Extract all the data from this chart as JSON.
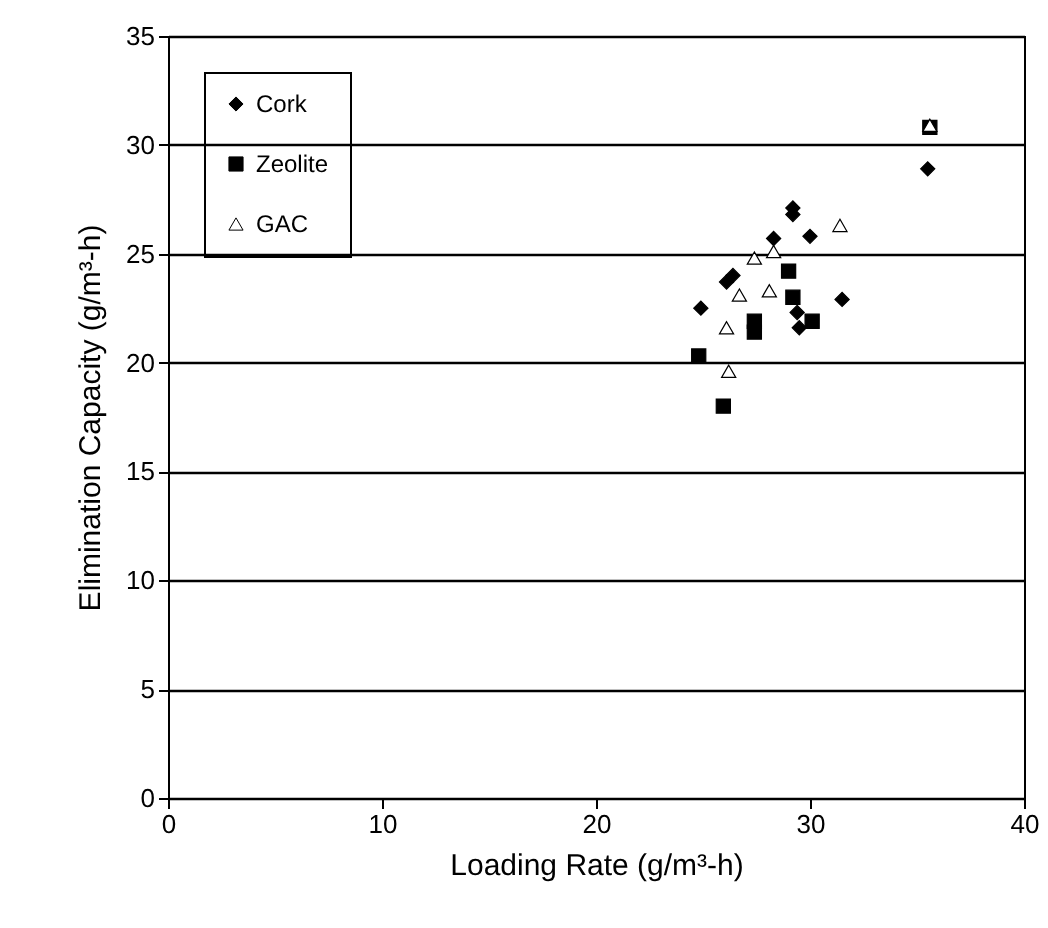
{
  "chart_data": {
    "type": "scatter",
    "xlabel": "Loading Rate (g/m³-h)",
    "ylabel": "Elimination Capacity (g/m³-h)",
    "xlim": [
      0,
      40
    ],
    "xticks": [
      0,
      10,
      20,
      30,
      40
    ],
    "ylim": [
      0,
      35
    ],
    "yticks": [
      0,
      5,
      10,
      15,
      20,
      25,
      30,
      35
    ],
    "grid": "y",
    "legend": "top left",
    "series": [
      {
        "name": "Cork",
        "color": "#000000",
        "marker": "diamond",
        "x": [
          24.9,
          35.5,
          31.5,
          30.0,
          29.2,
          29.2,
          28.3,
          26.4,
          26.1,
          29.1,
          29.5,
          29.4
        ],
        "values": [
          22.5,
          28.9,
          22.9,
          25.8,
          26.8,
          27.1,
          25.7,
          24.0,
          23.7,
          null,
          21.6,
          22.3
        ]
      },
      {
        "name": "Zeolite",
        "color": "#000000",
        "marker": "square",
        "x": [
          35.6,
          24.8,
          25.95,
          27.4,
          27.4,
          30.1,
          29.0,
          29.2
        ],
        "values": [
          30.8,
          20.3,
          18.0,
          21.4,
          21.9,
          21.9,
          24.2,
          23.0
        ]
      },
      {
        "name": "GAC",
        "color": "#ffffff",
        "marker": "triangle",
        "x": [
          31.4,
          35.6,
          26.1,
          28.3,
          28.1,
          26.2,
          27.4,
          26.7
        ],
        "values": [
          26.3,
          30.9,
          21.6,
          25.1,
          23.3,
          19.6,
          24.8,
          23.1
        ]
      }
    ]
  }
}
